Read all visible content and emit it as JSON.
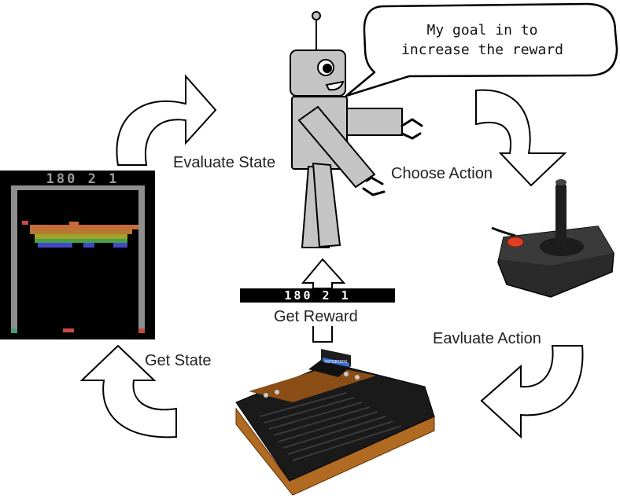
{
  "speech_bubble": {
    "line1": "My goal in to",
    "line2": "increase the reward"
  },
  "labels": {
    "evaluate_state": "Evaluate State",
    "choose_action": "Choose Action",
    "get_reward": "Get Reward",
    "evaluate_action": "Eavluate Action",
    "get_state": "Get State"
  },
  "game_screen": {
    "score": "180 2 1"
  },
  "reward_strip": {
    "score": "180 2 1"
  },
  "console": {
    "cartridge_label": "ASTEROIDS"
  },
  "colors": {
    "robot_gray": "#c4c4c4",
    "brick_red": "#c84848",
    "brick_orange": "#c66c3a",
    "brick_tan": "#b47a30",
    "brick_yellow": "#a2a22a",
    "brick_green": "#48a048",
    "brick_blue": "#4248c8",
    "wood": "#b06a22",
    "screen_wall": "#8e8e8e"
  }
}
